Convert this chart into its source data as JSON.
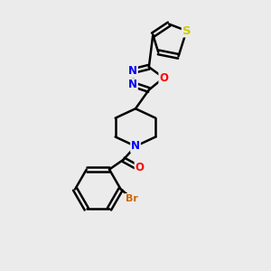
{
  "background_color": "#ebebeb",
  "bond_color": "#000000",
  "bond_width": 1.8,
  "atom_colors": {
    "N": "#0000ff",
    "O": "#ff0000",
    "S": "#cccc00",
    "Br": "#cc6600",
    "C": "#000000"
  },
  "font_size": 8.5,
  "fig_width": 3.0,
  "fig_height": 3.0,
  "dpi": 100
}
